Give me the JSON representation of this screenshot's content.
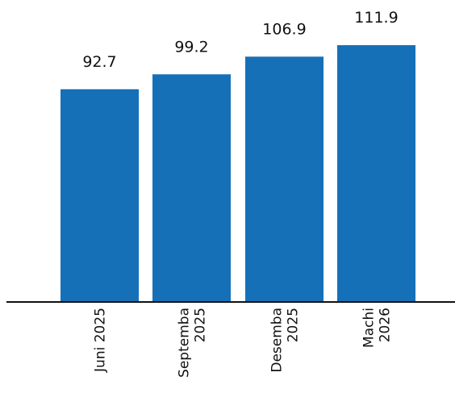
{
  "chart_data": {
    "type": "bar",
    "categories": [
      [
        "Juni 2025"
      ],
      [
        "Septemba",
        "2025"
      ],
      [
        "Desemba",
        "2025"
      ],
      [
        "Machi",
        "2026"
      ]
    ],
    "values": [
      92.7,
      99.2,
      106.9,
      111.9
    ],
    "value_labels": [
      "92.7",
      "99.2",
      "106.9",
      "111.9"
    ],
    "title": "",
    "xlabel": "",
    "ylabel": "",
    "ylim": [
      0,
      115
    ],
    "grid": false,
    "bar_color": "#1570b8",
    "axis_color": "#111111"
  }
}
